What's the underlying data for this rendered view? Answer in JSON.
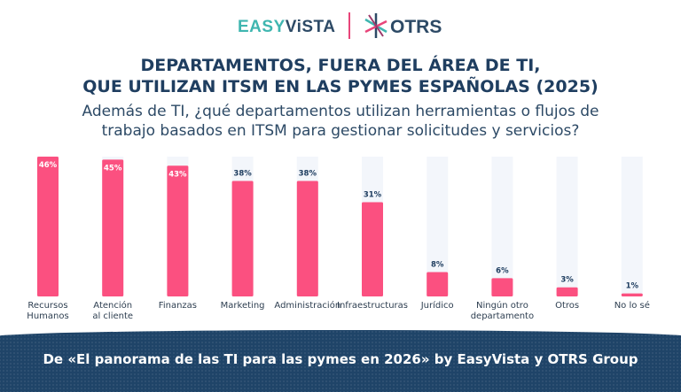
{
  "header": {
    "logo_left": {
      "part1": "EASY",
      "part2": "ViSTA"
    },
    "logo_right": "OTRS"
  },
  "title": {
    "line1": "DEPARTAMENTOS, FUERA DEL ÁREA DE TI,",
    "line2": "QUE UTILIZAN ITSM EN LAS PYMES ESPAÑOLAS (2025)"
  },
  "subtitle": {
    "line1": "Además de TI, ¿qué departamentos utilizan herramientas o flujos de",
    "line2": "trabajo basados en ITSM para gestionar solicitudes y servicios?"
  },
  "chart_data": {
    "type": "bar",
    "categories": [
      [
        "Recursos",
        "Humanos"
      ],
      [
        "Atención",
        "al cliente"
      ],
      [
        "Finanzas"
      ],
      [
        "Marketing"
      ],
      [
        "Administración"
      ],
      [
        "Infraestructuras"
      ],
      [
        "Jurídico"
      ],
      [
        "Ningún otro",
        "departamento"
      ],
      [
        "Otros"
      ],
      [
        "No lo sé"
      ]
    ],
    "values": [
      46,
      45,
      43,
      38,
      38,
      31,
      8,
      6,
      3,
      1
    ],
    "labels": [
      "46%",
      "45%",
      "43%",
      "38%",
      "38%",
      "31%",
      "8%",
      "6%",
      "3%",
      "1%"
    ],
    "unit": "%",
    "ylim": [
      0,
      46
    ],
    "grid": false,
    "colors": {
      "bar": "#fb5080",
      "track": "#f3f6fb",
      "label_dark": "#1f3e60",
      "label_light": "#ffffff"
    }
  },
  "footer": {
    "text": "De «El panorama de las TI para las pymes en 2026» by EasyVista y OTRS Group",
    "color": "#1f4468"
  }
}
